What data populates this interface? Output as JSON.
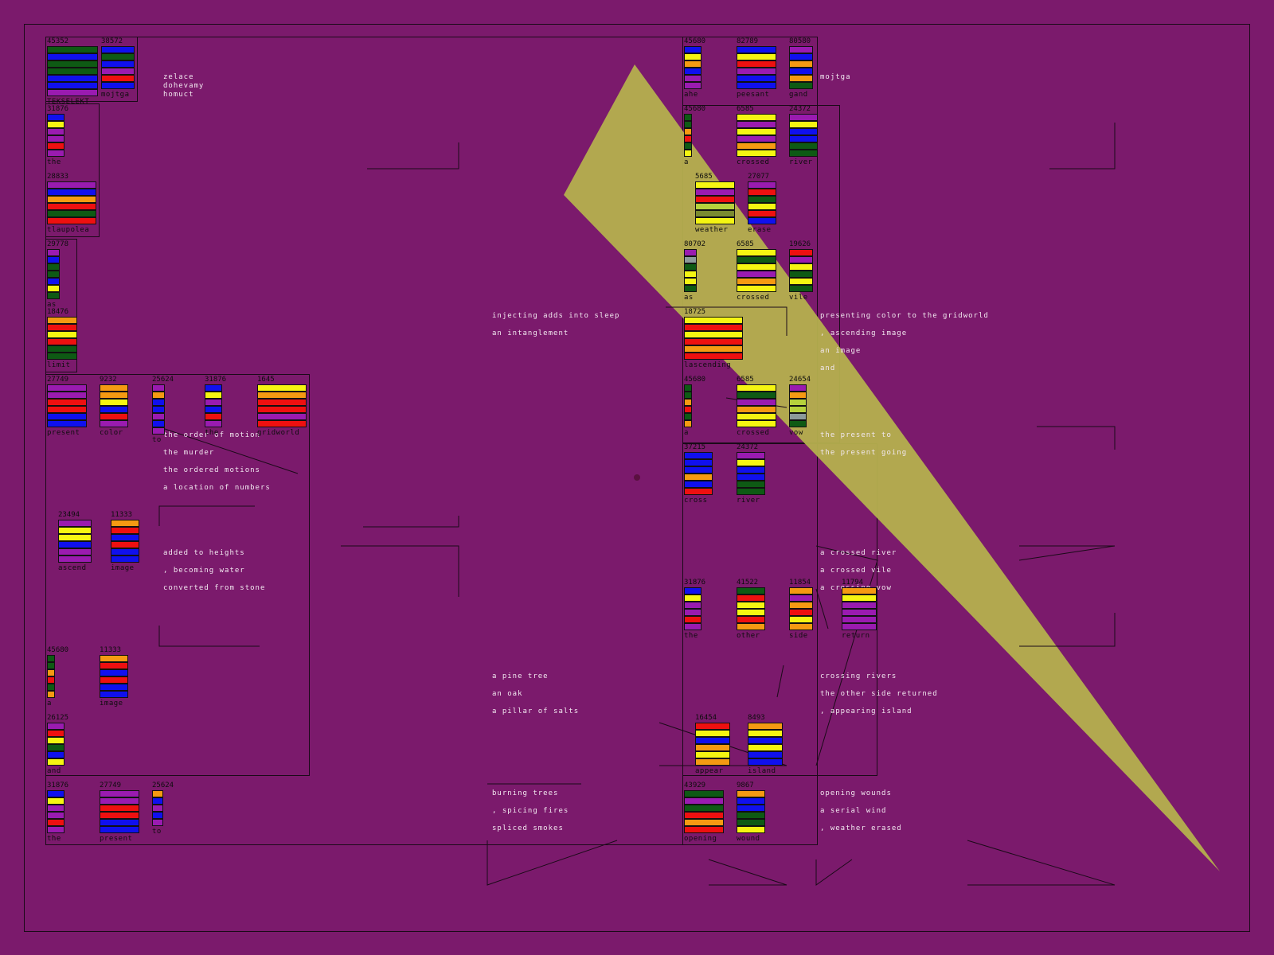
{
  "colors": {
    "background": "#7b1a6c",
    "line": "#1a0a18",
    "poem_text": "#f2e8f0",
    "wedge": "#b5b04e",
    "palette": {
      "g": "#0e5a14",
      "b": "#1010ee",
      "p": "#9a1bb0",
      "y": "#f5f512",
      "o": "#f59a12",
      "r": "#ee1010",
      "l": "#b6d23c",
      "k": "#7a8a30",
      "s": "#8c9a9a"
    }
  },
  "header_words": {
    "w1": "zelace",
    "w2": "dohevamy",
    "w3": "homuct",
    "top_right": "mojtga"
  },
  "poems": [
    {
      "lines": [
        "injecting adds into sleep",
        "an intanglement"
      ]
    },
    {
      "lines": [
        "presenting color to the gridworld",
        " , ascending image",
        "an image",
        "and"
      ]
    },
    {
      "lines": [
        "the present to",
        "the present going"
      ]
    },
    {
      "lines": [
        "the order of motion",
        "the murder",
        "the ordered motions",
        "a location of numbers"
      ]
    },
    {
      "lines": [
        "added to heights",
        " , becoming water",
        "converted from stone"
      ]
    },
    {
      "lines": [
        "a crossed river",
        "a crossed vile",
        "a crossing vow"
      ]
    },
    {
      "lines": [
        "a pine tree",
        "an oak",
        "a pillar of salts"
      ]
    },
    {
      "lines": [
        "crossing rivers",
        "the other side returned",
        " , appearing island"
      ]
    },
    {
      "lines": [
        "burning trees",
        " , spicing fires",
        "spliced smokes"
      ]
    },
    {
      "lines": [
        "opening wounds",
        "a serial wind",
        " , weather erased"
      ]
    }
  ],
  "stacks": [
    {
      "num": "45352",
      "word": "TEKSELEKT",
      "colors": [
        "g",
        "b",
        "g",
        "g",
        "b",
        "b",
        "p"
      ]
    },
    {
      "num": "38572",
      "word": "mojtga",
      "colors": [
        "b",
        "g",
        "b",
        "p",
        "r",
        "b"
      ]
    },
    {
      "num": "31876",
      "word": "the",
      "colors": [
        "b",
        "y",
        "p",
        "p",
        "r",
        "p"
      ]
    },
    {
      "num": "28833",
      "word": "tlaupolea",
      "colors": [
        "p",
        "b",
        "o",
        "r",
        "g",
        "r"
      ]
    },
    {
      "num": "29778",
      "word": "as",
      "colors": [
        "p",
        "b",
        "g",
        "g",
        "b",
        "y",
        "g"
      ]
    },
    {
      "num": "18476",
      "word": "limit",
      "colors": [
        "o",
        "r",
        "y",
        "r",
        "g",
        "g"
      ]
    },
    {
      "num": "27749",
      "word": "present",
      "colors": [
        "p",
        "p",
        "r",
        "r",
        "b",
        "b"
      ]
    },
    {
      "num": "9232",
      "word": "color",
      "colors": [
        "o",
        "o",
        "y",
        "b",
        "r",
        "p"
      ]
    },
    {
      "num": "25624",
      "word": "to",
      "colors": [
        "p",
        "o",
        "b",
        "b",
        "p",
        "b",
        "p"
      ]
    },
    {
      "num": "31876",
      "word": "the",
      "colors": [
        "b",
        "y",
        "p",
        "b",
        "r",
        "p"
      ]
    },
    {
      "num": "1645",
      "word": "gridworld",
      "colors": [
        "y",
        "o",
        "r",
        "r",
        "p",
        "r"
      ]
    },
    {
      "num": "23494",
      "word": "ascend",
      "colors": [
        "p",
        "y",
        "y",
        "b",
        "p",
        "p"
      ]
    },
    {
      "num": "11333",
      "word": "image",
      "colors": [
        "o",
        "r",
        "b",
        "r",
        "b",
        "b"
      ]
    },
    {
      "num": "45680",
      "word": "a",
      "colors": [
        "g",
        "g",
        "o",
        "r",
        "g",
        "o"
      ]
    },
    {
      "num": "11333",
      "word": "image",
      "colors": [
        "o",
        "r",
        "b",
        "r",
        "b",
        "b"
      ]
    },
    {
      "num": "26125",
      "word": "and",
      "colors": [
        "p",
        "r",
        "y",
        "g",
        "b",
        "y"
      ]
    },
    {
      "num": "31876",
      "word": "the",
      "colors": [
        "b",
        "y",
        "p",
        "p",
        "r",
        "p"
      ]
    },
    {
      "num": "27749",
      "word": "present",
      "colors": [
        "p",
        "p",
        "r",
        "r",
        "b",
        "b"
      ]
    },
    {
      "num": "25624",
      "word": "to",
      "colors": [
        "o",
        "b",
        "p",
        "b",
        "p"
      ]
    },
    {
      "num": "45680",
      "word": "ahe",
      "colors": [
        "b",
        "y",
        "o",
        "b",
        "p",
        "p"
      ]
    },
    {
      "num": "82789",
      "word": "peesant",
      "colors": [
        "b",
        "y",
        "r",
        "p",
        "b",
        "b"
      ]
    },
    {
      "num": "80580",
      "word": "gand",
      "colors": [
        "p",
        "b",
        "o",
        "b",
        "o",
        "g"
      ]
    },
    {
      "num": "45680",
      "word": "a",
      "colors": [
        "g",
        "g",
        "o",
        "r",
        "g",
        "y"
      ]
    },
    {
      "num": "6585",
      "word": "crossed",
      "colors": [
        "y",
        "p",
        "y",
        "p",
        "o",
        "y"
      ]
    },
    {
      "num": "24372",
      "word": "river",
      "colors": [
        "p",
        "y",
        "b",
        "b",
        "g",
        "g"
      ]
    },
    {
      "num": "5685",
      "word": "weather",
      "colors": [
        "y",
        "p",
        "r",
        "l",
        "k",
        "y"
      ]
    },
    {
      "num": "27077",
      "word": "erase",
      "colors": [
        "p",
        "r",
        "g",
        "y",
        "r",
        "b"
      ]
    },
    {
      "num": "80702",
      "word": "as",
      "colors": [
        "p",
        "s",
        "g",
        "y",
        "y",
        "g"
      ]
    },
    {
      "num": "6585",
      "word": "crossed",
      "colors": [
        "y",
        "g",
        "y",
        "p",
        "o",
        "y"
      ]
    },
    {
      "num": "19626",
      "word": "vile",
      "colors": [
        "r",
        "p",
        "y",
        "g",
        "y",
        "g"
      ]
    },
    {
      "num": "18725",
      "word": "lascending",
      "colors": [
        "y",
        "r",
        "y",
        "r",
        "o",
        "r"
      ]
    },
    {
      "num": "45680",
      "word": "a",
      "colors": [
        "g",
        "g",
        "o",
        "r",
        "g",
        "o"
      ]
    },
    {
      "num": "6585",
      "word": "crossed",
      "colors": [
        "y",
        "g",
        "p",
        "o",
        "y",
        "y"
      ]
    },
    {
      "num": "24654",
      "word": "vow",
      "colors": [
        "p",
        "o",
        "l",
        "l",
        "s",
        "g"
      ]
    },
    {
      "num": "37215",
      "word": "cross",
      "colors": [
        "b",
        "b",
        "b",
        "o",
        "b",
        "r"
      ]
    },
    {
      "num": "24372",
      "word": "river",
      "colors": [
        "p",
        "y",
        "b",
        "b",
        "g",
        "g"
      ]
    },
    {
      "num": "31876",
      "word": "the",
      "colors": [
        "b",
        "y",
        "p",
        "p",
        "r",
        "p"
      ]
    },
    {
      "num": "41522",
      "word": "other",
      "colors": [
        "g",
        "r",
        "y",
        "y",
        "r",
        "o"
      ]
    },
    {
      "num": "11854",
      "word": "side",
      "colors": [
        "o",
        "p",
        "o",
        "r",
        "y",
        "o"
      ]
    },
    {
      "num": "11794",
      "word": "return",
      "colors": [
        "o",
        "y",
        "p",
        "p",
        "p",
        "p"
      ]
    },
    {
      "num": "16454",
      "word": "appear",
      "colors": [
        "r",
        "y",
        "b",
        "o",
        "y",
        "o"
      ]
    },
    {
      "num": "8493",
      "word": "island",
      "colors": [
        "o",
        "y",
        "b",
        "y",
        "b",
        "b"
      ]
    },
    {
      "num": "43929",
      "word": "opening",
      "colors": [
        "g",
        "p",
        "g",
        "r",
        "o",
        "r"
      ]
    },
    {
      "num": "9867",
      "word": "wound",
      "colors": [
        "o",
        "b",
        "b",
        "g",
        "g",
        "y"
      ]
    }
  ]
}
